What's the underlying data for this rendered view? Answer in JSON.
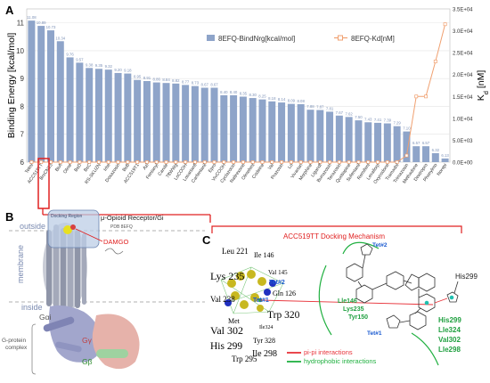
{
  "panel_a": {
    "label": "A",
    "chart_data": {
      "type": "bar",
      "categories": [
        "Telmi",
        "ACC519TT",
        "BrsCN13",
        "BsA",
        "Olme",
        "BsD",
        "BsC",
        "RS-SKUZN",
        "Irbe",
        "Doxazosin",
        "BsB",
        "ACC519T1",
        "Azl",
        "Fentanyl",
        "Cande",
        "78WWg",
        "LoCOOH",
        "Losartanfl",
        "Carfentanil",
        "Epro",
        "VivCOOH",
        "Cyclazocin",
        "Naltrexone",
        "Olmefent",
        "Codeine",
        "Val",
        "Prazosin",
        "Lo",
        "Vivartan",
        "Morphine",
        "Ligandf",
        "Bunazosin",
        "Terazosin",
        "Quetiapine",
        "Sufentanil",
        "Remifent",
        "Levallorp",
        "Oxycodone",
        "Tramadol",
        "Trimazosin",
        "Methadone",
        "Dextropro",
        "Phenylmo",
        "Norepi"
      ],
      "values": [
        11.08,
        10.89,
        10.73,
        10.34,
        9.76,
        9.57,
        9.38,
        9.35,
        9.32,
        9.2,
        9.18,
        8.95,
        8.91,
        8.86,
        8.84,
        8.82,
        8.77,
        8.73,
        8.67,
        8.67,
        8.4,
        8.4,
        8.35,
        8.3,
        8.25,
        8.18,
        8.14,
        8.09,
        8.08,
        7.88,
        7.87,
        7.81,
        7.67,
        7.62,
        7.5,
        7.43,
        7.41,
        7.39,
        7.29,
        7.1,
        6.57,
        6.57,
        6.32,
        6.13
      ],
      "value_labels": [
        "11.08",
        "10.89",
        "10.73",
        "10.34",
        "9.76",
        "9.57",
        "9.38",
        "9.35",
        "9.32",
        "9.20",
        "9.18",
        "8.95",
        "8.91",
        "8.86",
        "8.84",
        "8.82",
        "8.77",
        "8.73",
        "8.67",
        "8.67",
        "8.40",
        "8.40",
        "8.35",
        "8.30",
        "8.25",
        "8.18",
        "8.14",
        "8.09",
        "8.08",
        "7.88",
        "7.87",
        "7.81",
        "7.67",
        "7.62",
        "7.50",
        "7.43",
        "7.41",
        "7.39",
        "7.29",
        "7.10",
        "6.57",
        "6.57",
        "6.32",
        "6.13"
      ],
      "kd_values": [
        0,
        0,
        0,
        0,
        0,
        0,
        0,
        0,
        0,
        0,
        0,
        0,
        0,
        0,
        0,
        0,
        0,
        0,
        0,
        0,
        0,
        0,
        0,
        0,
        0,
        0,
        0,
        0,
        0,
        0,
        0,
        0,
        0,
        0,
        0,
        0,
        0,
        0,
        0,
        1500,
        15000,
        15000,
        23000,
        31500
      ],
      "series": [
        {
          "name": "8EFQ-BindNrg[kcal/mol]",
          "color": "#8ea4c9"
        },
        {
          "name": "8EFQ-Kd[nM]",
          "color": "#f0a070"
        }
      ],
      "ylabel": "Binding Energy [kcal/mol]",
      "ylim": [
        6,
        11.5
      ],
      "yticks": [
        "6",
        "7",
        "8",
        "9",
        "10",
        "11"
      ],
      "y2label_main": "K",
      "y2label_sub": "d",
      "y2label_unit": " [nM]",
      "y2lim": [
        0,
        35000
      ],
      "y2ticks": [
        "0.0E+00",
        "5.0E+03",
        "1.0E+04",
        "1.5E+04",
        "2.0E+04",
        "2.5E+04",
        "3.0E+04",
        "3.5E+04"
      ],
      "legend_placement": "top-right",
      "grid": true
    }
  },
  "panel_b": {
    "label": "B",
    "receptor_label": "μ-Opioid Receptor/Gi",
    "pdb_label": "PDB 8EFQ",
    "docking_region_label": "Docking Region",
    "ligand_label": "DAMGO",
    "outside_label": "outside",
    "membrane_label": "membrane",
    "inside_label": "inside",
    "gai_label": "Gαi",
    "gy_label": "Gγ",
    "gb_label": "Gβ",
    "complex_label_1": "G-protein",
    "complex_label_2": "complex"
  },
  "panel_c": {
    "label": "C",
    "title": "ACC519TT Docking Mechanism",
    "residues": {
      "leu221": "Leu 221",
      "ile146": "Ile 146",
      "val145": "Val 145",
      "lys235": "Lys 235",
      "gln126": "Gln 126",
      "val238": "Val 238",
      "trp320": "Trp 320",
      "met": "Met",
      "val302": "Val 302",
      "ile324": "Ile324",
      "tyr328": "Tyr 328",
      "his299": "His 299",
      "ile298": "Ile 298",
      "trp295": "Trp 295"
    },
    "tet1": "Tet#1",
    "tet2": "Tet#2",
    "his299_right": "His299",
    "left_hydrophobic": [
      "Lle146",
      "Lys235",
      "Tyr150"
    ],
    "right_hydrophobic": [
      "His299",
      "Lle324",
      "Val302",
      "Lle298"
    ],
    "legend": {
      "pipi": "pi-pi interactions",
      "hydrophobic": "hydrophobic interactions",
      "pipi_color": "#e8333a",
      "hydrophobic_color": "#20b040"
    }
  }
}
